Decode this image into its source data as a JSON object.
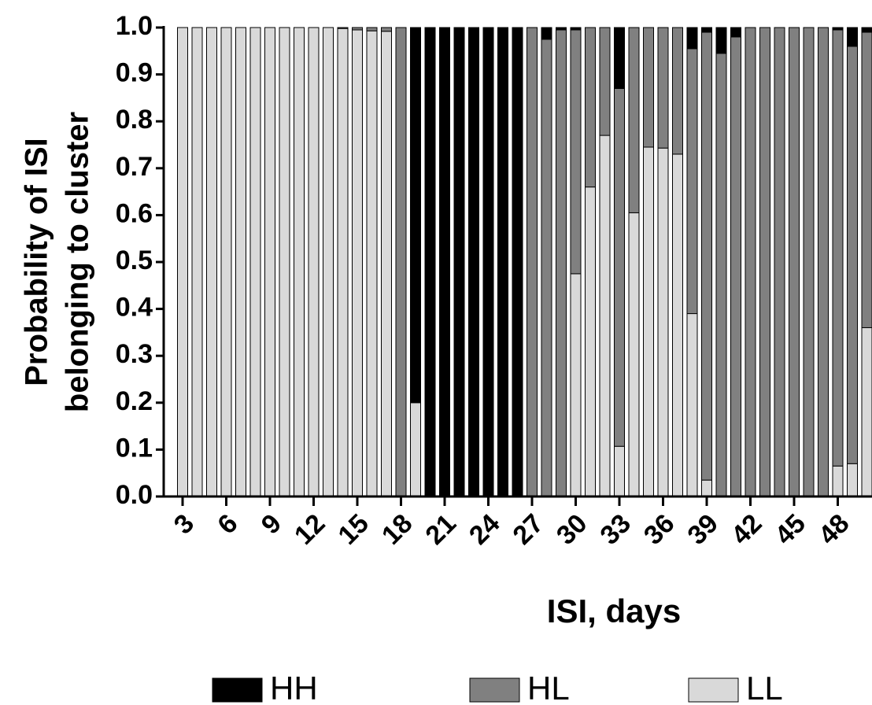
{
  "chart_data": {
    "type": "stacked_bar",
    "xlabel": "ISI, days",
    "ylabel": [
      "Probability of ISI",
      "belonging to cluster"
    ],
    "categories": [
      "3",
      null,
      null,
      "6",
      null,
      null,
      "9",
      null,
      null,
      "12",
      null,
      null,
      "15",
      null,
      null,
      "18",
      null,
      null,
      "21",
      null,
      null,
      "24",
      null,
      null,
      "27",
      null,
      null,
      "30",
      null,
      null,
      "33",
      null,
      null,
      "36",
      null,
      null,
      "39",
      null,
      null,
      "42",
      null,
      null,
      "45",
      null,
      null,
      "48",
      null,
      null
    ],
    "series": [
      {
        "name": "HH",
        "color": "#000000",
        "values": [
          0,
          0,
          0,
          0,
          0,
          0,
          0,
          0,
          0,
          0,
          0,
          0,
          0,
          0,
          0,
          0,
          0.8,
          1,
          1,
          1,
          1,
          1,
          1,
          1,
          0,
          0.025,
          0.005,
          0.005,
          0,
          0,
          0.13,
          0,
          0,
          0,
          0,
          0.045,
          0.01,
          0.055,
          0.02,
          0,
          0,
          0,
          0,
          0,
          0,
          0.005,
          0.04,
          0.01
        ]
      },
      {
        "name": "HL",
        "color": "#808080",
        "values": [
          0,
          0,
          0,
          0,
          0,
          0,
          0,
          0,
          0,
          0,
          0,
          0.002,
          0.005,
          0.007,
          0.008,
          1,
          0,
          0,
          0,
          0,
          0,
          0,
          0,
          0,
          1,
          0.975,
          0.995,
          0.52,
          0.34,
          0.23,
          0.763,
          0.395,
          0.255,
          0.257,
          0.27,
          0.565,
          0.955,
          0.945,
          0.98,
          1,
          1,
          1,
          1,
          1,
          1,
          0.93,
          0.89,
          0.63
        ]
      },
      {
        "name": "LL",
        "color": "#d9d9d9",
        "values": [
          1,
          1,
          1,
          1,
          1,
          1,
          1,
          1,
          1,
          1,
          1,
          0.998,
          0.995,
          0.993,
          0.992,
          0,
          0.2,
          0,
          0,
          0,
          0,
          0,
          0,
          0,
          0,
          0,
          0,
          0.475,
          0.66,
          0.77,
          0.107,
          0.605,
          0.745,
          0.743,
          0.73,
          0.39,
          0.035,
          0,
          0,
          0,
          0,
          0,
          0,
          0,
          0,
          0.065,
          0.07,
          0.36
        ]
      }
    ],
    "stack_order": [
      "LL",
      "HL",
      "HH"
    ],
    "ylim": [
      0,
      1
    ],
    "yticks": [
      {
        "value": 0,
        "label": "0.0"
      },
      0.1,
      0.2,
      0.3,
      0.4,
      0.5,
      0.6,
      0.7,
      0.8,
      0.9,
      {
        "value": 1,
        "label": "1.0"
      }
    ]
  }
}
